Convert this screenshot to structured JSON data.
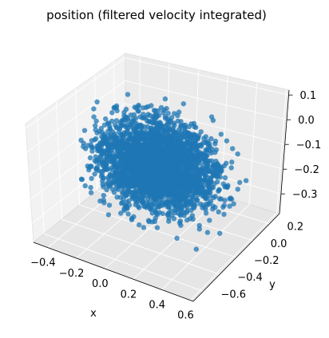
{
  "chart_data": {
    "type": "scatter",
    "projection": "3d",
    "title": "position (filtered velocity integrated)",
    "xlabel": "x",
    "ylabel": "y",
    "zlabel": "",
    "xlim": [
      -0.5,
      0.62
    ],
    "ylim": [
      -0.72,
      0.32
    ],
    "zlim": [
      -0.38,
      0.12
    ],
    "xticks": [
      "−0.4",
      "−0.2",
      "0.0",
      "0.2",
      "0.4",
      "0.6"
    ],
    "yticks": [
      "−0.6",
      "−0.4",
      "−0.2",
      "0.0",
      "0.2"
    ],
    "zticks": [
      "−0.3",
      "−0.2",
      "−0.1",
      "0.0",
      "0.1"
    ],
    "grid": true,
    "marker_color": "#1f77b4",
    "point_count": 3000,
    "point_cloud": {
      "x_range": [
        -0.45,
        0.45
      ],
      "y_range": [
        -0.45,
        0.25
      ],
      "z_range": [
        -0.32,
        0.05
      ],
      "shape": "box"
    }
  }
}
